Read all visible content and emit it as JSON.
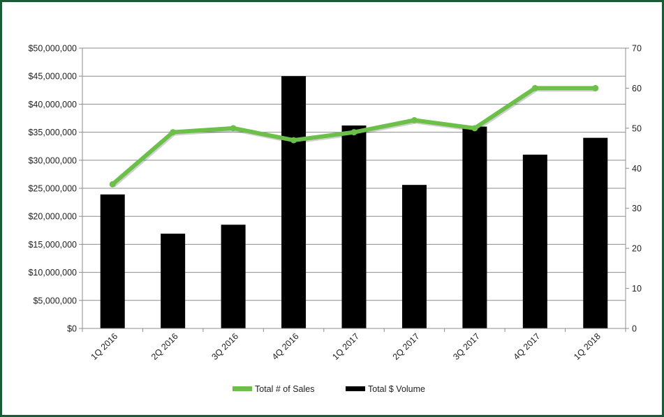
{
  "chart_data": {
    "type": "bar",
    "categories": [
      "1Q 2016",
      "2Q 2016",
      "3Q 2016",
      "4Q 2016",
      "1Q 2017",
      "2Q 2017",
      "3Q 2017",
      "4Q 2017",
      "1Q 2018"
    ],
    "series": [
      {
        "name": "Total $ Volume",
        "type": "bar",
        "axis": "left",
        "color": "#000000",
        "values": [
          23900000,
          16900000,
          18500000,
          45000000,
          36200000,
          25600000,
          36000000,
          31000000,
          34000000
        ]
      },
      {
        "name": "Total # of Sales",
        "type": "line",
        "axis": "right",
        "color": "#6cc04a",
        "values": [
          36,
          49,
          50,
          47,
          49,
          52,
          50,
          60,
          60
        ]
      }
    ],
    "left_axis": {
      "ylim": [
        0,
        50000000
      ],
      "ticks": [
        0,
        5000000,
        10000000,
        15000000,
        20000000,
        25000000,
        30000000,
        35000000,
        40000000,
        45000000,
        50000000
      ],
      "tick_labels": [
        "$0",
        "$5,000,000",
        "$10,000,000",
        "$15,000,000",
        "$20,000,000",
        "$25,000,000",
        "$30,000,000",
        "$35,000,000",
        "$40,000,000",
        "$45,000,000",
        "$50,000,000"
      ]
    },
    "right_axis": {
      "ylim": [
        0,
        70
      ],
      "ticks": [
        0,
        10,
        20,
        30,
        40,
        50,
        60,
        70
      ],
      "tick_labels": [
        "0",
        "10",
        "20",
        "30",
        "40",
        "50",
        "60",
        "70"
      ]
    },
    "grid": true,
    "legend": {
      "placement": "bottom-center",
      "entries": [
        "Total # of Sales",
        "Total $ Volume"
      ]
    },
    "title": "",
    "xlabel": "",
    "ylabel": ""
  }
}
